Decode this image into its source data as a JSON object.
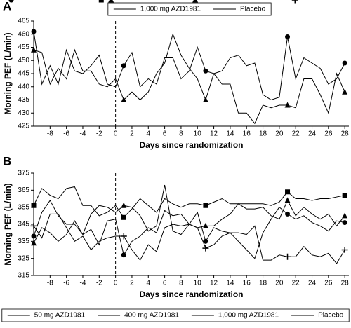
{
  "chart_data": [
    {
      "type": "line",
      "title": "A",
      "xlabel": "Days since randomization",
      "ylabel": "Morning PEF (L/min)",
      "x": [
        -10,
        -9,
        -8,
        -7,
        -6,
        -5,
        -4,
        -3,
        -2,
        -1,
        0,
        1,
        2,
        3,
        4,
        5,
        6,
        7,
        8,
        9,
        10,
        11,
        12,
        13,
        14,
        15,
        16,
        17,
        18,
        19,
        20,
        21,
        22,
        23,
        24,
        25,
        26,
        27,
        28
      ],
      "xlim": [
        -10,
        28.5
      ],
      "xticks": [
        -8,
        -6,
        -4,
        -2,
        0,
        2,
        4,
        6,
        8,
        10,
        12,
        14,
        16,
        18,
        20,
        22,
        24,
        26,
        28
      ],
      "ylim": [
        425,
        465
      ],
      "yticks": [
        425,
        430,
        435,
        440,
        445,
        450,
        455,
        460,
        465
      ],
      "vline": 0,
      "legend": "top",
      "markers_at": [
        -10,
        1,
        11,
        21,
        28
      ],
      "series": [
        {
          "name": "1,000 mg AZD1981",
          "color": "#000000",
          "marker": "circle",
          "values": [
            461,
            441,
            448,
            441,
            454,
            446,
            445,
            448,
            452,
            441,
            440,
            448,
            453,
            440,
            443,
            441,
            451,
            451,
            443,
            446,
            455,
            446,
            445,
            446,
            451,
            452,
            448,
            449,
            437,
            435,
            436,
            459,
            443,
            451,
            449,
            447,
            441,
            443,
            449
          ]
        },
        {
          "name": "Placebo",
          "color": "#000000",
          "marker": "triangle",
          "values": [
            454,
            453,
            441,
            447,
            443,
            454,
            446,
            446,
            441,
            440,
            443,
            435,
            438,
            435,
            438,
            445,
            449,
            460,
            452,
            447,
            443,
            435,
            445,
            441,
            441,
            430,
            430,
            426,
            433,
            432,
            433,
            433,
            432,
            443,
            443,
            437,
            430,
            445,
            438
          ]
        }
      ]
    },
    {
      "type": "line",
      "title": "B",
      "xlabel": "Days since randomization",
      "ylabel": "Morning PEF (L/min)",
      "x": [
        -10,
        -9,
        -8,
        -7,
        -6,
        -5,
        -4,
        -3,
        -2,
        -1,
        0,
        1,
        2,
        3,
        4,
        5,
        6,
        7,
        8,
        9,
        10,
        11,
        12,
        13,
        14,
        15,
        16,
        17,
        18,
        19,
        20,
        21,
        22,
        23,
        24,
        25,
        26,
        27,
        28
      ],
      "xlim": [
        -10,
        28.5
      ],
      "xticks": [
        -8,
        -6,
        -4,
        -2,
        0,
        2,
        4,
        6,
        8,
        10,
        12,
        14,
        16,
        18,
        20,
        22,
        24,
        26,
        28
      ],
      "ylim": [
        315,
        375
      ],
      "yticks": [
        315,
        325,
        335,
        345,
        355,
        365,
        375
      ],
      "vline": 0,
      "legend": "bottom",
      "markers_at": [
        -10,
        1,
        11,
        21,
        28
      ],
      "series": [
        {
          "name": "50 mg AZD1981",
          "color": "#000000",
          "marker": "circle",
          "values": [
            338,
            352,
            359,
            350,
            345,
            345,
            339,
            342,
            333,
            347,
            348,
            327,
            335,
            338,
            343,
            340,
            353,
            350,
            351,
            345,
            352,
            335,
            343,
            341,
            340,
            335,
            330,
            325,
            340,
            348,
            355,
            351,
            348,
            350,
            346,
            344,
            341,
            347,
            346
          ]
        },
        {
          "name": "400 mg AZD1981",
          "color": "#000000",
          "marker": "square",
          "values": [
            356,
            366,
            362,
            360,
            366,
            367,
            356,
            356,
            350,
            352,
            356,
            349,
            354,
            360,
            356,
            352,
            360,
            357,
            355,
            357,
            357,
            356,
            358,
            360,
            357,
            357,
            357,
            357,
            357,
            356,
            358,
            364,
            360,
            360,
            359,
            360,
            360,
            361,
            362
          ]
        },
        {
          "name": "1,000 mg AZD1981",
          "color": "#000000",
          "marker": "triangle",
          "values": [
            334,
            343,
            340,
            335,
            339,
            347,
            339,
            351,
            356,
            355,
            352,
            356,
            355,
            350,
            341,
            344,
            368,
            341,
            339,
            345,
            343,
            344,
            344,
            348,
            351,
            357,
            354,
            354,
            355,
            350,
            348,
            359,
            350,
            355,
            351,
            348,
            351,
            344,
            350
          ]
        },
        {
          "name": "Placebo",
          "color": "#000000",
          "marker": "plus",
          "values": [
            344,
            337,
            351,
            351,
            343,
            335,
            338,
            330,
            335,
            337,
            338,
            338,
            330,
            324,
            333,
            329,
            343,
            345,
            344,
            345,
            343,
            331,
            333,
            338,
            340,
            340,
            339,
            344,
            324,
            324,
            327,
            326,
            326,
            332,
            327,
            326,
            328,
            322,
            330
          ]
        }
      ]
    }
  ]
}
